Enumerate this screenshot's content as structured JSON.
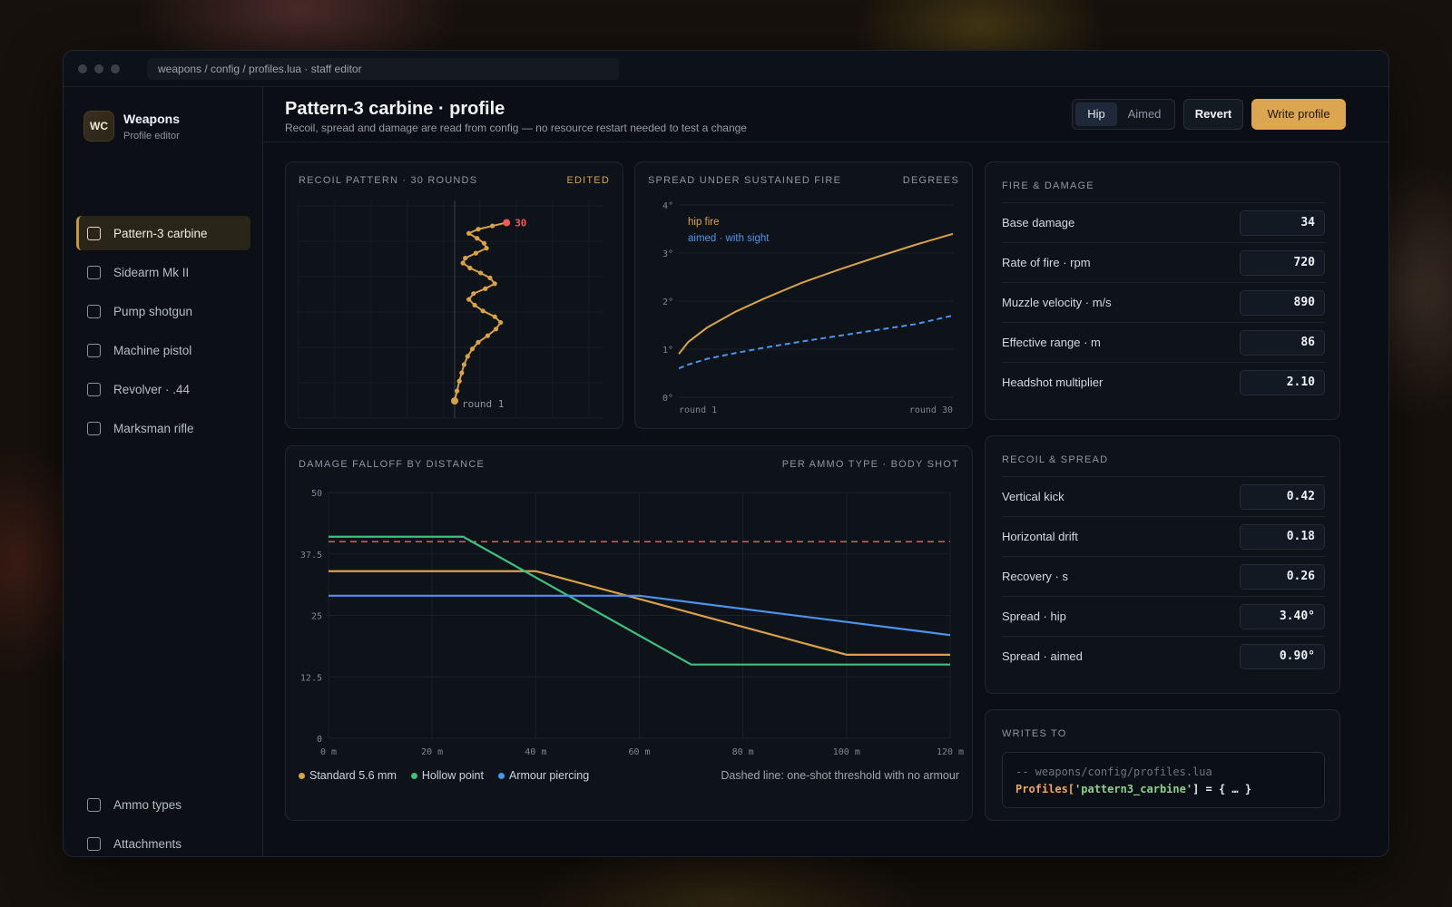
{
  "window": {
    "address": "weapons / config / profiles.lua · staff editor"
  },
  "sidebar": {
    "brand_logo": "WC",
    "brand_title": "Weapons",
    "brand_sub": "Profile editor",
    "items": [
      {
        "label": "Pattern-3 carbine",
        "active": true
      },
      {
        "label": "Sidearm Mk II",
        "active": false
      },
      {
        "label": "Pump shotgun",
        "active": false
      },
      {
        "label": "Machine pistol",
        "active": false
      },
      {
        "label": "Revolver · .44",
        "active": false
      },
      {
        "label": "Marksman rifle",
        "active": false
      }
    ],
    "bottom_items": [
      {
        "label": "Ammo types"
      },
      {
        "label": "Attachments"
      }
    ]
  },
  "header": {
    "title": "Pattern-3 carbine · profile",
    "subtitle": "Recoil, spread and damage are read from config — no resource restart needed to test a change",
    "mode_hip": "Hip",
    "mode_aimed": "Aimed",
    "revert_label": "Revert",
    "write_label": "Write profile"
  },
  "recoil_panel": {
    "title": "Recoil pattern · 30 rounds",
    "badge": "Edited",
    "start_label": "round 1",
    "end_label": "30",
    "colors": {
      "path": "#d9a24a",
      "end": "#ee5a55"
    }
  },
  "spread_panel": {
    "title": "Spread under sustained fire",
    "unit": "Degrees",
    "legend_hip": "hip fire",
    "legend_aimed": "aimed · with sight",
    "x_start": "round 1",
    "x_end": "round 30"
  },
  "falloff_panel": {
    "title": "Damage falloff by distance",
    "subtitle": "Per ammo type · body shot",
    "legend": [
      {
        "label": "Standard 5.6 mm",
        "color": "#d9a24a"
      },
      {
        "label": "Hollow point",
        "color": "#3ec07e"
      },
      {
        "label": "Armour piercing",
        "color": "#4d93ee"
      }
    ],
    "note": "Dashed line: one-shot threshold with no armour"
  },
  "fire_damage": {
    "title": "Fire & damage",
    "rows": [
      {
        "label": "Base damage",
        "value": "34"
      },
      {
        "label": "Rate of fire · rpm",
        "value": "720"
      },
      {
        "label": "Muzzle velocity · m/s",
        "value": "890"
      },
      {
        "label": "Effective range · m",
        "value": "86"
      },
      {
        "label": "Headshot multiplier",
        "value": "2.10"
      }
    ]
  },
  "recoil_spread": {
    "title": "Recoil & spread",
    "rows": [
      {
        "label": "Vertical kick",
        "value": "0.42"
      },
      {
        "label": "Horizontal drift",
        "value": "0.18"
      },
      {
        "label": "Recovery · s",
        "value": "0.26"
      },
      {
        "label": "Spread · hip",
        "value": "3.40°"
      },
      {
        "label": "Spread · aimed",
        "value": "0.90°"
      }
    ]
  },
  "writes_to": {
    "title": "Writes to",
    "comment": "-- weapons/config/profiles.lua",
    "code_prefix": "Profiles[",
    "code_key": "'pattern3_carbine'",
    "code_suffix": "] = { … }"
  },
  "chart_data": [
    {
      "type": "line",
      "title": "Recoil pattern · 30 rounds",
      "series": [
        {
          "x": [
            0,
            0.1,
            0.2,
            0.3,
            0.4,
            0.55,
            0.75,
            1.0,
            1.4,
            1.75,
            1.95,
            1.7,
            1.2,
            0.85,
            0.6,
            0.8,
            1.3,
            1.7,
            1.5,
            1.1,
            0.65,
            0.35,
            0.45,
            0.9,
            1.35,
            1.25,
            0.95,
            0.6,
            1.0,
            1.6,
            2.2
          ],
          "y": [
            0,
            0.6,
            1.2,
            1.7,
            2.2,
            2.7,
            3.15,
            3.55,
            3.95,
            4.35,
            4.75,
            5.1,
            5.45,
            5.8,
            6.15,
            6.5,
            6.8,
            7.1,
            7.45,
            7.75,
            8.05,
            8.35,
            8.65,
            8.95,
            9.25,
            9.55,
            9.85,
            10.15,
            10.4,
            10.6,
            10.8
          ]
        }
      ]
    },
    {
      "type": "line",
      "title": "Spread under sustained fire",
      "ylabel": "Degrees",
      "yticks": [
        "0°",
        "1°",
        "2°",
        "3°",
        "4°"
      ],
      "ylim": [
        0,
        4
      ],
      "xlim": [
        1,
        30
      ],
      "series": [
        {
          "name": "hip fire",
          "x": [
            1,
            2,
            4,
            7,
            10,
            14,
            18,
            22,
            26,
            30
          ],
          "y": [
            0.9,
            1.15,
            1.45,
            1.78,
            2.05,
            2.38,
            2.66,
            2.92,
            3.17,
            3.4
          ]
        },
        {
          "name": "aimed · with sight",
          "x": [
            1,
            2,
            4,
            7,
            10,
            14,
            18,
            22,
            26,
            30
          ],
          "y": [
            0.6,
            0.68,
            0.8,
            0.92,
            1.03,
            1.16,
            1.28,
            1.4,
            1.52,
            1.7
          ]
        }
      ]
    },
    {
      "type": "line",
      "title": "Damage falloff by distance",
      "xticks": [
        "0 m",
        "20 m",
        "40 m",
        "60 m",
        "80 m",
        "100 m",
        "120 m"
      ],
      "yticks": [
        "0",
        "12.5",
        "25",
        "37.5",
        "50"
      ],
      "xlim": [
        0,
        120
      ],
      "ylim": [
        0,
        50
      ],
      "threshold": 40,
      "series": [
        {
          "name": "Standard 5.6 mm",
          "x": [
            0,
            40,
            100,
            120
          ],
          "y": [
            34,
            34,
            17,
            17
          ]
        },
        {
          "name": "Hollow point",
          "x": [
            0,
            26,
            70,
            120
          ],
          "y": [
            41,
            41,
            15,
            15
          ]
        },
        {
          "name": "Armour piercing",
          "x": [
            0,
            60,
            120
          ],
          "y": [
            29,
            29,
            21
          ]
        }
      ]
    }
  ]
}
